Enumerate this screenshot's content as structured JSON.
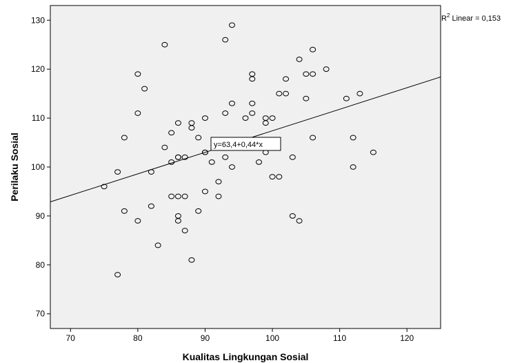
{
  "chart_data": {
    "type": "scatter",
    "xlabel": "Kualitas Lingkungan Sosial",
    "ylabel": "Perilaku Sosial",
    "xlim": [
      67,
      125
    ],
    "ylim": [
      67,
      133
    ],
    "xticks": [
      70,
      80,
      90,
      100,
      110,
      120
    ],
    "yticks": [
      70,
      80,
      90,
      100,
      110,
      120,
      130
    ],
    "grid": false,
    "plot_background": "#f0f0f0",
    "marker": "open-circle",
    "fit_line": {
      "type": "linear",
      "intercept": 63.4,
      "slope": 0.44,
      "label": "y=63,4+0,44*x"
    },
    "r2_label": {
      "prefix": "R",
      "sup": "2",
      "text": " Linear = 0,153"
    },
    "points": [
      [
        75,
        96
      ],
      [
        77,
        99
      ],
      [
        77,
        78
      ],
      [
        78,
        106
      ],
      [
        78,
        91
      ],
      [
        80,
        119
      ],
      [
        80,
        111
      ],
      [
        80,
        89
      ],
      [
        81,
        116
      ],
      [
        82,
        99
      ],
      [
        82,
        92
      ],
      [
        83,
        84
      ],
      [
        84,
        125
      ],
      [
        84,
        104
      ],
      [
        85,
        107
      ],
      [
        85,
        101
      ],
      [
        85,
        94
      ],
      [
        86,
        109
      ],
      [
        86,
        102
      ],
      [
        86,
        102
      ],
      [
        86,
        94
      ],
      [
        86,
        90
      ],
      [
        86,
        89
      ],
      [
        87,
        102
      ],
      [
        87,
        94
      ],
      [
        87,
        87
      ],
      [
        88,
        109
      ],
      [
        88,
        108
      ],
      [
        88,
        81
      ],
      [
        89,
        106
      ],
      [
        89,
        91
      ],
      [
        90,
        110
      ],
      [
        90,
        103
      ],
      [
        90,
        103
      ],
      [
        90,
        95
      ],
      [
        91,
        101
      ],
      [
        92,
        97
      ],
      [
        92,
        94
      ],
      [
        93,
        126
      ],
      [
        93,
        111
      ],
      [
        93,
        102
      ],
      [
        94,
        129
      ],
      [
        94,
        113
      ],
      [
        94,
        100
      ],
      [
        96,
        110
      ],
      [
        97,
        119
      ],
      [
        97,
        118
      ],
      [
        97,
        113
      ],
      [
        97,
        111
      ],
      [
        98,
        101
      ],
      [
        99,
        110
      ],
      [
        99,
        109
      ],
      [
        99,
        103
      ],
      [
        100,
        110
      ],
      [
        100,
        98
      ],
      [
        101,
        115
      ],
      [
        101,
        98
      ],
      [
        102,
        118
      ],
      [
        102,
        115
      ],
      [
        103,
        102
      ],
      [
        103,
        90
      ],
      [
        104,
        122
      ],
      [
        104,
        89
      ],
      [
        105,
        119
      ],
      [
        105,
        114
      ],
      [
        106,
        124
      ],
      [
        106,
        119
      ],
      [
        106,
        106
      ],
      [
        108,
        120
      ],
      [
        111,
        114
      ],
      [
        112,
        106
      ],
      [
        112,
        100
      ],
      [
        113,
        115
      ],
      [
        115,
        103
      ]
    ]
  }
}
